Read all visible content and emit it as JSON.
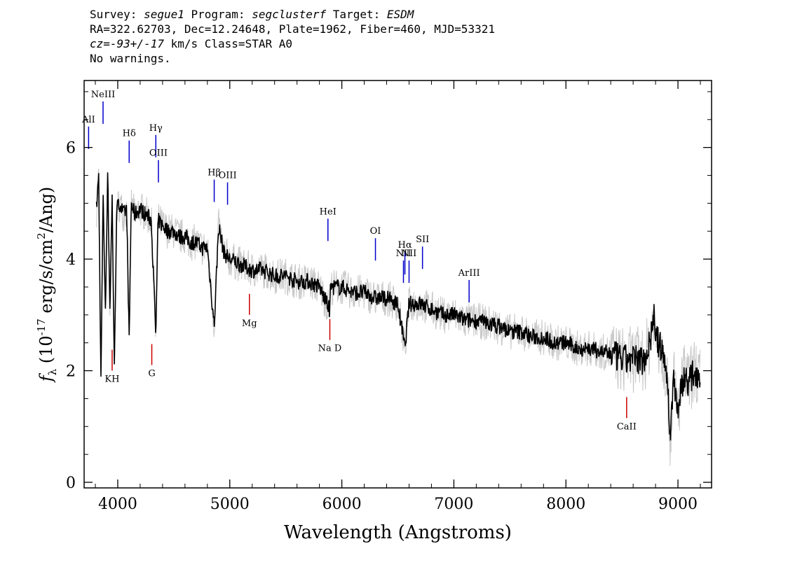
{
  "header": {
    "line1": [
      {
        "text": "Survey: ",
        "italic": false
      },
      {
        "text": "segue1",
        "italic": true
      },
      {
        "text": " Program: ",
        "italic": false
      },
      {
        "text": "segclusterf",
        "italic": true
      },
      {
        "text": " Target: ",
        "italic": false
      },
      {
        "text": "ESDM",
        "italic": true
      }
    ],
    "line2": "RA=322.62703, Dec=12.24648, Plate=1962, Fiber=460, MJD=53321",
    "line3": [
      {
        "text": "cz=-93+/-17",
        "italic": true
      },
      {
        "text": " km/s Class=STAR A0",
        "italic": false
      }
    ],
    "line4": "No warnings."
  },
  "chart_data": {
    "type": "line",
    "xlabel": "Wavelength (Angstroms)",
    "ylabel_parts": {
      "symbol": "f",
      "sub": "λ",
      "prefix": "(10",
      "exp": "-17",
      "rest": "erg/s/cm",
      "exp2": "2",
      "end": "/Ang)"
    },
    "xlim": [
      3700,
      9300
    ],
    "ylim": [
      -0.1,
      7.2
    ],
    "xticks": [
      4000,
      5000,
      6000,
      7000,
      8000,
      9000
    ],
    "yticks": [
      0,
      2,
      4,
      6
    ],
    "colors": {
      "spectrum": "#000000",
      "error": "#c8c8c8",
      "emission": "#0000cc",
      "absorption": "#cc0000"
    },
    "series": [
      {
        "role": "spectrum",
        "x": [
          3810,
          3830,
          3850,
          3870,
          3890,
          3910,
          3930,
          3950,
          3970,
          3990,
          4020,
          4050,
          4080,
          4102,
          4120,
          4150,
          4200,
          4250,
          4300,
          4340,
          4360,
          4400,
          4450,
          4500,
          4550,
          4600,
          4650,
          4700,
          4750,
          4800,
          4861,
          4900,
          4950,
          5000,
          5100,
          5200,
          5300,
          5400,
          5500,
          5600,
          5700,
          5800,
          5890,
          5900,
          6000,
          6100,
          6200,
          6300,
          6400,
          6500,
          6563,
          6600,
          6700,
          6800,
          6900,
          7000,
          7100,
          7200,
          7300,
          7400,
          7500,
          7600,
          7700,
          7800,
          7900,
          8000,
          8100,
          8200,
          8300,
          8400,
          8500,
          8600,
          8700,
          8760,
          8780,
          8800,
          8850,
          8900,
          8930,
          8960,
          9000,
          9050,
          9100,
          9150,
          9200
        ],
        "y": [
          4.9,
          5.5,
          1.8,
          5.2,
          3.0,
          5.6,
          3.1,
          5.1,
          2.0,
          4.9,
          5.0,
          4.8,
          4.9,
          2.5,
          5.0,
          4.8,
          4.9,
          4.8,
          4.7,
          2.6,
          4.7,
          4.6,
          4.5,
          4.5,
          4.4,
          4.4,
          4.3,
          4.3,
          4.2,
          4.2,
          2.8,
          4.6,
          4.1,
          4.0,
          3.9,
          3.8,
          3.8,
          3.7,
          3.7,
          3.6,
          3.6,
          3.5,
          3.1,
          3.5,
          3.5,
          3.4,
          3.4,
          3.3,
          3.3,
          3.2,
          2.4,
          3.2,
          3.2,
          3.1,
          3.0,
          3.0,
          2.9,
          2.9,
          2.85,
          2.8,
          2.7,
          2.7,
          2.6,
          2.6,
          2.5,
          2.5,
          2.4,
          2.4,
          2.35,
          2.3,
          2.2,
          2.2,
          2.2,
          2.6,
          3.1,
          2.6,
          2.4,
          2.0,
          0.8,
          1.9,
          1.3,
          1.9,
          1.8,
          2.0,
          1.9
        ]
      }
    ],
    "lines": [
      {
        "label": "AlI",
        "kind": "emission",
        "x": 3740,
        "y_label": 6.45
      },
      {
        "label": "NeIII",
        "kind": "emission",
        "x": 3869,
        "y_label": 6.9
      },
      {
        "label": "Hδ",
        "kind": "emission",
        "x": 4102,
        "y_label": 6.2
      },
      {
        "label": "Hγ",
        "kind": "emission",
        "x": 4340,
        "y_label": 6.3
      },
      {
        "label": "OIII",
        "kind": "emission",
        "x": 4363,
        "y_label": 5.85
      },
      {
        "label": "Hβ",
        "kind": "emission",
        "x": 4861,
        "y_label": 5.5
      },
      {
        "label": "OIII",
        "kind": "emission",
        "x": 4980,
        "y_label": 5.45
      },
      {
        "label": "HeI",
        "kind": "emission",
        "x": 5876,
        "y_label": 4.8
      },
      {
        "label": "OI",
        "kind": "emission",
        "x": 6300,
        "y_label": 4.45
      },
      {
        "label": "NII",
        "kind": "emission",
        "x": 6550,
        "y_label": 4.05
      },
      {
        "label": "Hα",
        "kind": "emission",
        "x": 6563,
        "y_label": 4.2
      },
      {
        "label": "SII",
        "kind": "emission",
        "x": 6720,
        "y_label": 4.3
      },
      {
        "label": "NII",
        "kind": "emission",
        "x": 6600,
        "y_label": 4.05
      },
      {
        "label": "ArIII",
        "kind": "emission",
        "x": 7136,
        "y_label": 3.7
      },
      {
        "label": "Mg",
        "kind": "absorption",
        "x": 5175,
        "y_label": 2.8
      },
      {
        "label": "Na D",
        "kind": "absorption",
        "x": 5893,
        "y_label": 2.35
      },
      {
        "label": "KH",
        "kind": "absorption",
        "x": 3950,
        "y_label": 1.8
      },
      {
        "label": "G",
        "kind": "absorption",
        "x": 4304,
        "y_label": 1.9
      },
      {
        "label": "CaII",
        "kind": "absorption",
        "x": 8542,
        "y_label": 0.95
      }
    ]
  }
}
